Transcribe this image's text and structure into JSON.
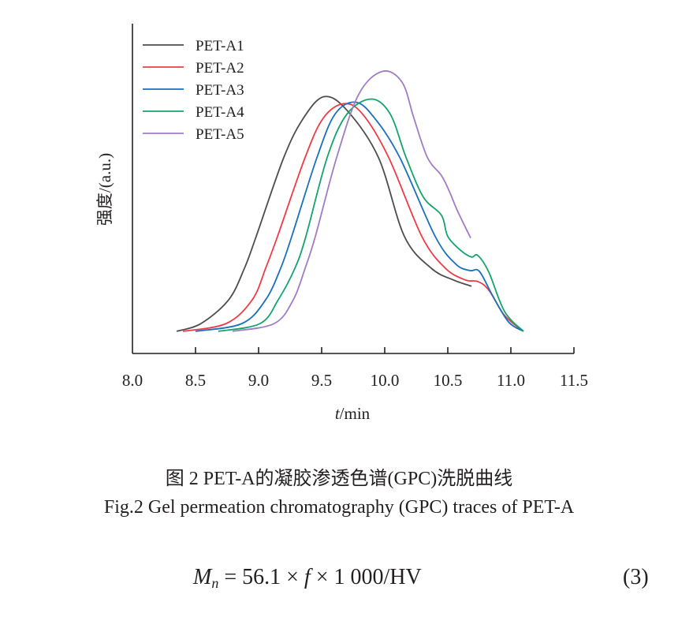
{
  "chart_data": {
    "type": "line",
    "title": "",
    "xlabel": {
      "italic": "t",
      "rest": "/min"
    },
    "ylabel": "强度/(a.u.)",
    "xlim": [
      8.0,
      11.5
    ],
    "ylim": [
      -8.5,
      118
    ],
    "xticks": [
      "8.0",
      "8.5",
      "9.0",
      "9.5",
      "10.0",
      "10.5",
      "11.0",
      "11.5"
    ],
    "grid": false,
    "legend_position": "top-left",
    "series": [
      {
        "name": "PET-A1",
        "color": "#4d4d4f",
        "x": [
          8.35,
          8.544,
          8.763,
          8.888,
          8.981,
          9.2,
          9.356,
          9.519,
          9.7,
          9.95,
          10.156,
          10.369,
          10.544,
          10.688
        ],
        "y": [
          0,
          3.0,
          12.1,
          24.2,
          36.4,
          66.7,
          81.8,
          90.0,
          84.8,
          66.7,
          36.4,
          24.2,
          19.7,
          17.3
        ]
      },
      {
        "name": "PET-A2",
        "color": "#ee3b45",
        "x": [
          8.4,
          8.744,
          8.95,
          9.056,
          9.15,
          9.369,
          9.513,
          9.675,
          9.825,
          10.031,
          10.294,
          10.481,
          10.638,
          10.738,
          10.825,
          10.95,
          11.1
        ],
        "y": [
          0,
          3.0,
          12.1,
          24.2,
          36.4,
          66.7,
          81.8,
          87.3,
          83.3,
          66.7,
          36.4,
          24.2,
          19.7,
          19.1,
          15.8,
          6.1,
          0
        ]
      },
      {
        "name": "PET-A3",
        "color": "#1a6fbf",
        "x": [
          8.5,
          8.869,
          9.056,
          9.175,
          9.263,
          9.463,
          9.606,
          9.769,
          9.919,
          10.119,
          10.4,
          10.563,
          10.675,
          10.75,
          10.856,
          10.981,
          11.1
        ],
        "y": [
          0,
          3.0,
          12.1,
          24.2,
          36.4,
          66.7,
          83.3,
          87.9,
          81.8,
          66.7,
          36.4,
          25.8,
          23.3,
          23.0,
          13.6,
          3.6,
          0
        ]
      },
      {
        "name": "PET-A4",
        "color": "#13a36b",
        "x": [
          8.681,
          9.013,
          9.156,
          9.288,
          9.375,
          9.544,
          9.7,
          9.894,
          10.044,
          10.169,
          10.306,
          10.45,
          10.5,
          10.606,
          10.688,
          10.738,
          10.825,
          10.95,
          11.1
        ],
        "y": [
          0,
          3.0,
          12.1,
          24.2,
          36.4,
          66.7,
          83.3,
          89.1,
          83.3,
          66.7,
          51.5,
          44.5,
          36.4,
          30.9,
          28.5,
          29.1,
          22.7,
          7.6,
          0
        ]
      },
      {
        "name": "PET-A5",
        "color": "#a07cc5",
        "x": [
          8.794,
          9.125,
          9.275,
          9.369,
          9.45,
          9.619,
          9.794,
          9.981,
          10.138,
          10.231,
          10.338,
          10.45,
          10.513,
          10.575,
          10.681
        ],
        "y": [
          0,
          3.0,
          12.1,
          24.2,
          36.4,
          66.7,
          90.9,
          99.7,
          95.5,
          81.8,
          66.7,
          59.7,
          53.6,
          46.4,
          35.8
        ]
      }
    ]
  },
  "caption": {
    "chinese": "图 2   PET-A的凝胶渗透色谱(GPC)洗脱曲线",
    "english": "Fig.2   Gel permeation chromatography (GPC) traces of PET-A"
  },
  "equation": {
    "lhs_symbol": "M",
    "lhs_subscript": "n",
    "rhs_part1": " = 56.1 × ",
    "rhs_var": "f",
    "rhs_part2": " × 1 000/HV",
    "number": "(3)"
  }
}
